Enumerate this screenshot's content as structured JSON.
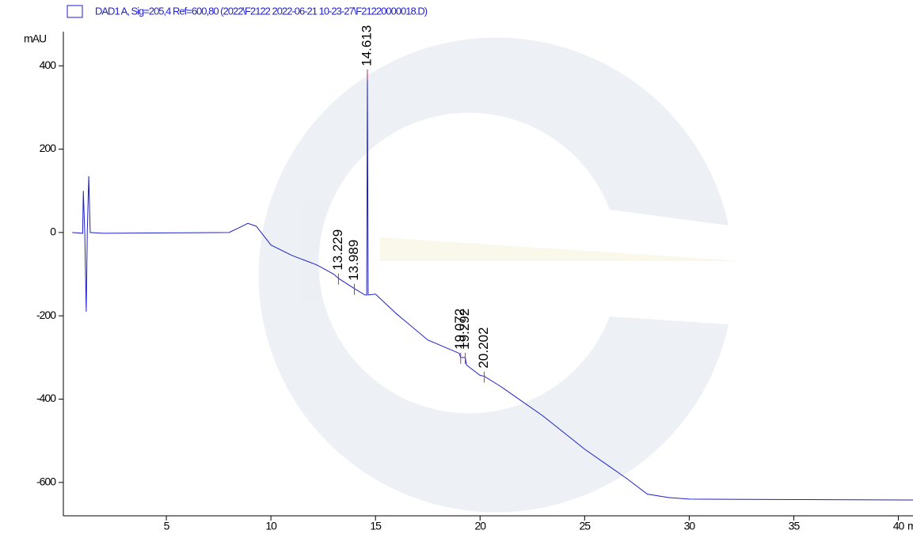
{
  "chart_data": {
    "type": "line",
    "legend": "DAD1 A, Sig=205,4 Ref=600,80 (2022\\F2122 2022-06-21 10-23-27\\F21220000018.D)",
    "y_label": "mAU",
    "x_label": "min",
    "x": [
      0.5,
      1.0,
      1.03,
      1.1,
      1.17,
      1.22,
      1.29,
      1.36,
      2,
      5,
      8,
      8.5,
      8.9,
      9.3,
      10,
      11,
      12.2,
      13,
      13.229,
      14,
      14.5,
      14.58,
      14.613,
      14.65,
      15,
      16,
      17.5,
      19,
      19.072,
      19.292,
      19.35,
      20,
      20.202,
      21,
      22,
      23,
      24,
      25,
      26,
      27,
      28,
      29,
      30,
      35,
      40.7
    ],
    "series": [
      {
        "name": "DAD1 A",
        "color": "#1f1fcc",
        "values": [
          0,
          -2,
          100,
          -2,
          -190,
          0,
          135,
          0,
          -2,
          -1,
          0,
          12,
          22,
          15,
          -30,
          -55,
          -78,
          -100,
          -110,
          -135,
          -150,
          -150,
          380,
          -150,
          -148,
          -195,
          -258,
          -290,
          -300,
          -300,
          -318,
          -343,
          -345,
          -370,
          -405,
          -440,
          -480,
          -520,
          -555,
          -590,
          -628,
          -636,
          -640,
          -641,
          -642
        ]
      }
    ],
    "peaks": [
      13.229,
      13.989,
      14.613,
      19.072,
      19.292,
      20.202
    ],
    "xlim": [
      0,
      40.7
    ],
    "ylim": [
      -680,
      520
    ],
    "xticks": [
      5,
      10,
      15,
      20,
      25,
      30,
      35,
      40
    ],
    "yticks": [
      400,
      200,
      0,
      -200,
      -400,
      -600
    ]
  }
}
